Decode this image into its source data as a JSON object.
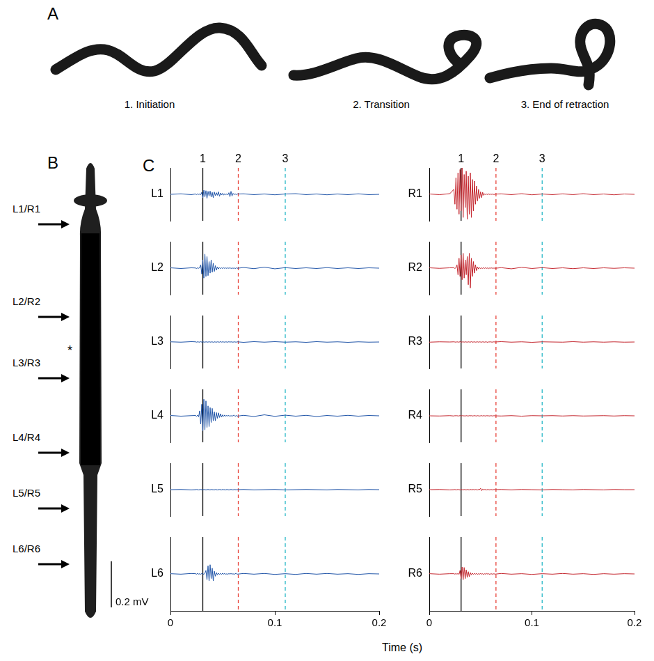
{
  "panel_a": {
    "label": "A",
    "stages": [
      "1. Initiation",
      "2. Transition",
      "3. End of retraction"
    ]
  },
  "panel_b": {
    "label": "B",
    "sites": [
      "L1/R1",
      "L2/R2",
      "L3/R3",
      "L4/R4",
      "L5/R5",
      "L6/R6"
    ],
    "asterisk": "*"
  },
  "chart_data": {
    "type": "line",
    "panel_label": "C",
    "x_label": "Time (s)",
    "xlim": [
      0,
      0.2
    ],
    "xticks": [
      0,
      0.1,
      0.2
    ],
    "ylim": [
      -0.16,
      0.16
    ],
    "tick_labels": "x",
    "grid": false,
    "scale_bar": {
      "value": 0.2,
      "label": "0.2 mV"
    },
    "events": [
      {
        "name": "1",
        "x": 0.031,
        "color": "#000000",
        "line_style": "solid"
      },
      {
        "name": "2",
        "x": 0.065,
        "color": "#e8453c",
        "line_style": "dashed"
      },
      {
        "name": "3",
        "x": 0.11,
        "color": "#26b7c7",
        "line_style": "dashed"
      }
    ],
    "x": [
      0,
      0.01,
      0.02,
      0.024,
      0.025,
      0.026,
      0.027,
      0.028,
      0.029,
      0.03,
      0.031,
      0.032,
      0.033,
      0.034,
      0.035,
      0.036,
      0.037,
      0.038,
      0.039,
      0.04,
      0.041,
      0.042,
      0.043,
      0.044,
      0.045,
      0.046,
      0.047,
      0.048,
      0.049,
      0.05,
      0.051,
      0.052,
      0.053,
      0.054,
      0.055,
      0.056,
      0.057,
      0.058,
      0.059,
      0.06,
      0.061,
      0.062,
      0.063,
      0.064,
      0.07,
      0.08,
      0.09,
      0.1,
      0.11,
      0.12,
      0.13,
      0.14,
      0.15,
      0.16,
      0.17,
      0.18,
      0.19,
      0.2
    ],
    "columns": [
      {
        "series": [
          {
            "name": "L1",
            "color": "#2155a8",
            "values": [
              0,
              0.003,
              -0.002,
              0.002,
              -0.002,
              0.003,
              -0.001,
              0.002,
              -0.002,
              0.012,
              -0.02,
              0.025,
              -0.015,
              0.022,
              -0.024,
              0.018,
              -0.01,
              0.02,
              -0.016,
              0.012,
              -0.02,
              0.014,
              -0.008,
              0.01,
              -0.006,
              0.015,
              -0.012,
              0.008,
              -0.004,
              0.006,
              -0.005,
              0.004,
              -0.003,
              0.003,
              -0.004,
              0.01,
              -0.014,
              0.018,
              -0.01,
              0.006,
              -0.002,
              0.003,
              -0.002,
              0.002,
              0.003,
              -0.002,
              0.002,
              -0.003,
              0.002,
              0.004,
              -0.002,
              0.002,
              -0.003,
              0.002,
              -0.002,
              0.003,
              -0.002,
              0
            ]
          },
          {
            "name": "L2",
            "color": "#2155a8",
            "values": [
              0.002,
              -0.002,
              0.002,
              0.001,
              -0.002,
              0.002,
              -0.001,
              0.003,
              0.02,
              -0.035,
              0.05,
              -0.06,
              0.085,
              -0.05,
              0.07,
              -0.045,
              0.04,
              -0.03,
              0.05,
              -0.025,
              0.03,
              -0.02,
              0.015,
              -0.012,
              0.008,
              -0.005,
              0.004,
              -0.003,
              0.002,
              -0.002,
              0.003,
              -0.002,
              0.002,
              -0.002,
              0.003,
              -0.002,
              0.004,
              -0.003,
              0.002,
              -0.002,
              0.002,
              -0.003,
              0.002,
              -0.001,
              0.004,
              -0.003,
              0.006,
              -0.004,
              0.003,
              -0.002,
              0.002,
              -0.002,
              0.003,
              -0.002,
              0.002,
              -0.002,
              0.002,
              0
            ]
          },
          {
            "name": "L3",
            "color": "#2155a8",
            "values": [
              0.001,
              -0.001,
              0.002,
              0.001,
              -0.001,
              0.001,
              0,
              -0.001,
              0.002,
              -0.001,
              0.001,
              0,
              -0.001,
              0.001,
              0,
              -0.001,
              0.002,
              -0.001,
              0,
              0.001,
              -0.002,
              0.001,
              0,
              -0.001,
              0.001,
              0,
              -0.001,
              0.002,
              -0.001,
              0.001,
              0,
              -0.001,
              0.001,
              0,
              -0.001,
              0.002,
              -0.001,
              0.001,
              0,
              -0.001,
              0.001,
              0,
              -0.001,
              0.001,
              -0.002,
              0.002,
              -0.001,
              0.002,
              -0.001,
              0.001,
              -0.002,
              0.002,
              -0.001,
              0.001,
              -0.002,
              0.001,
              -0.001,
              0
            ]
          },
          {
            "name": "L4",
            "color": "#2155a8",
            "values": [
              0.002,
              -0.002,
              0.001,
              0.002,
              -0.003,
              0.004,
              -0.006,
              0.03,
              -0.05,
              0.07,
              -0.09,
              0.1,
              -0.085,
              0.09,
              -0.07,
              0.06,
              -0.065,
              0.05,
              -0.04,
              0.045,
              -0.03,
              0.025,
              -0.03,
              0.02,
              -0.015,
              0.018,
              -0.01,
              0.012,
              -0.008,
              0.006,
              -0.004,
              0.005,
              -0.003,
              0.003,
              -0.002,
              0.003,
              -0.004,
              0.002,
              -0.003,
              0.002,
              0.004,
              -0.003,
              0.002,
              -0.002,
              0.003,
              -0.004,
              0.006,
              -0.003,
              0.004,
              -0.002,
              0.003,
              -0.004,
              0.002,
              -0.002,
              0.003,
              -0.002,
              0.002,
              0
            ]
          },
          {
            "name": "L5",
            "color": "#2155a8",
            "values": [
              0,
              0.001,
              -0.001,
              0,
              0.001,
              0,
              -0.001,
              0,
              0.001,
              0,
              -0.001,
              0.001,
              0,
              -0.001,
              0,
              0.001,
              0,
              -0.001,
              0.001,
              0,
              0,
              -0.001,
              0.001,
              0,
              -0.001,
              0,
              0.001,
              0,
              -0.001,
              0.001,
              0,
              0,
              -0.001,
              0.001,
              0,
              -0.001,
              0,
              0.001,
              0,
              -0.001,
              0.001,
              0,
              0,
              0,
              0.001,
              -0.001,
              0,
              0.001,
              -0.001,
              0,
              0.001,
              0,
              -0.001,
              0.001,
              0,
              -0.001,
              0.001,
              0
            ]
          },
          {
            "name": "L6",
            "color": "#2155a8",
            "values": [
              0.001,
              -0.001,
              0.002,
              0.001,
              -0.001,
              0.002,
              -0.001,
              0.001,
              -0.002,
              0.002,
              0.001,
              -0.002,
              0.003,
              0.015,
              -0.025,
              0.035,
              -0.03,
              0.04,
              -0.02,
              0.025,
              -0.03,
              0.012,
              -0.01,
              0.006,
              -0.004,
              0.003,
              -0.002,
              0.002,
              -0.002,
              0.003,
              -0.001,
              0.002,
              -0.002,
              0.001,
              -0.002,
              0.002,
              -0.001,
              0.002,
              -0.001,
              0.001,
              -0.002,
              0.001,
              0.002,
              -0.001,
              0.002,
              -0.001,
              0.002,
              -0.002,
              0.001,
              -0.002,
              0.002,
              -0.001,
              0.002,
              -0.001,
              0.001,
              -0.002,
              0.001,
              0
            ]
          }
        ]
      },
      {
        "series": [
          {
            "name": "R1",
            "color": "#c4262e",
            "values": [
              0.002,
              -0.002,
              0.004,
              0.03,
              -0.06,
              0.1,
              -0.09,
              0.13,
              -0.12,
              0.15,
              -0.1,
              0.16,
              -0.14,
              0.12,
              -0.08,
              0.14,
              -0.15,
              0.11,
              -0.12,
              0.13,
              -0.14,
              0.09,
              -0.1,
              0.08,
              -0.06,
              0.05,
              -0.04,
              0.03,
              -0.025,
              0.015,
              -0.02,
              0.012,
              -0.006,
              0.004,
              -0.003,
              0.002,
              -0.002,
              0.003,
              -0.002,
              0.002,
              -0.001,
              0.002,
              -0.002,
              0.001,
              0.003,
              -0.002,
              0.004,
              -0.003,
              0.002,
              -0.002,
              0.003,
              -0.002,
              0.004,
              -0.002,
              0.002,
              -0.003,
              0.002,
              0
            ]
          },
          {
            "name": "R2",
            "color": "#c4262e",
            "values": [
              0.002,
              -0.001,
              0.002,
              0.002,
              -0.002,
              0.003,
              0.02,
              -0.04,
              0.06,
              -0.05,
              0.08,
              -0.07,
              0.09,
              -0.06,
              0.05,
              -0.04,
              0.07,
              -0.1,
              0.09,
              -0.12,
              0.06,
              -0.05,
              0.04,
              -0.03,
              0.02,
              -0.015,
              0.008,
              -0.005,
              0.004,
              -0.003,
              0.002,
              -0.002,
              0.003,
              -0.002,
              0.003,
              -0.002,
              0.002,
              -0.003,
              0.002,
              -0.001,
              0.002,
              -0.002,
              0.001,
              -0.001,
              0.003,
              -0.004,
              0.005,
              -0.002,
              0.003,
              -0.002,
              0.002,
              -0.003,
              0.002,
              -0.002,
              0.002,
              -0.001,
              0.002,
              0
            ]
          },
          {
            "name": "R3",
            "color": "#c4262e",
            "values": [
              -0.001,
              0.001,
              0,
              0.001,
              0,
              -0.001,
              0.001,
              0,
              -0.001,
              0.002,
              -0.001,
              0,
              0.001,
              -0.001,
              0.001,
              0,
              -0.001,
              0.001,
              0,
              -0.001,
              0.002,
              -0.001,
              0,
              0.001,
              -0.001,
              0,
              0.001,
              -0.001,
              0.001,
              0,
              -0.001,
              0.001,
              0,
              -0.001,
              0.001,
              0,
              -0.002,
              0.001,
              0,
              0.001,
              -0.001,
              0,
              0.001,
              0,
              0.002,
              -0.001,
              0.001,
              -0.002,
              0.001,
              0,
              -0.001,
              0.002,
              -0.001,
              0.001,
              -0.001,
              0.001,
              -0.001,
              0
            ]
          },
          {
            "name": "R4",
            "color": "#c4262e",
            "values": [
              0,
              -0.001,
              0.001,
              -0.001,
              0.001,
              0,
              0.001,
              -0.001,
              0,
              0.001,
              -0.001,
              0.001,
              0,
              0,
              -0.001,
              0.001,
              0,
              -0.001,
              0.001,
              0,
              0.001,
              -0.001,
              0,
              0.001,
              0,
              -0.001,
              0.001,
              0,
              -0.001,
              0,
              0.001,
              -0.001,
              0.001,
              0,
              -0.001,
              0.001,
              0,
              0,
              -0.001,
              0.001,
              0,
              -0.001,
              0.001,
              0,
              -0.001,
              0.001,
              -0.002,
              0.001,
              0,
              0.001,
              -0.001,
              0.001,
              -0.001,
              0,
              0.001,
              -0.001,
              0.001,
              0
            ]
          },
          {
            "name": "R5",
            "color": "#c4262e",
            "values": [
              0,
              0.001,
              -0.001,
              0,
              0.001,
              -0.001,
              0,
              0.001,
              0,
              -0.001,
              0.001,
              0,
              -0.001,
              0.001,
              0,
              -0.001,
              0.001,
              0,
              -0.001,
              0.001,
              0,
              0,
              0.001,
              -0.001,
              0.001,
              0,
              -0.001,
              0.001,
              0,
              0.008,
              -0.006,
              0.003,
              -0.001,
              0.001,
              0,
              -0.001,
              0.001,
              0,
              -0.001,
              0.001,
              0,
              -0.001,
              0.001,
              0,
              0.001,
              -0.001,
              0.001,
              0,
              -0.001,
              0.001,
              0,
              -0.001,
              0.001,
              0,
              -0.001,
              0.001,
              0,
              0
            ]
          },
          {
            "name": "R6",
            "color": "#c4262e",
            "values": [
              0.001,
              -0.001,
              0.001,
              0.001,
              -0.001,
              0.002,
              -0.001,
              0.002,
              -0.002,
              0.015,
              -0.02,
              0.03,
              -0.025,
              0.028,
              -0.02,
              0.018,
              -0.015,
              0.01,
              -0.012,
              0.006,
              -0.004,
              0.003,
              -0.002,
              0.002,
              -0.001,
              0.002,
              -0.002,
              0.001,
              -0.001,
              0.002,
              -0.001,
              0.001,
              -0.002,
              0.001,
              -0.001,
              0.002,
              -0.001,
              0.001,
              -0.002,
              0.001,
              0,
              -0.001,
              0.001,
              -0.001,
              0.002,
              -0.001,
              0.001,
              -0.002,
              0.001,
              -0.001,
              0.002,
              -0.001,
              0.001,
              -0.002,
              0.001,
              -0.001,
              0.001,
              0
            ]
          }
        ]
      }
    ]
  }
}
